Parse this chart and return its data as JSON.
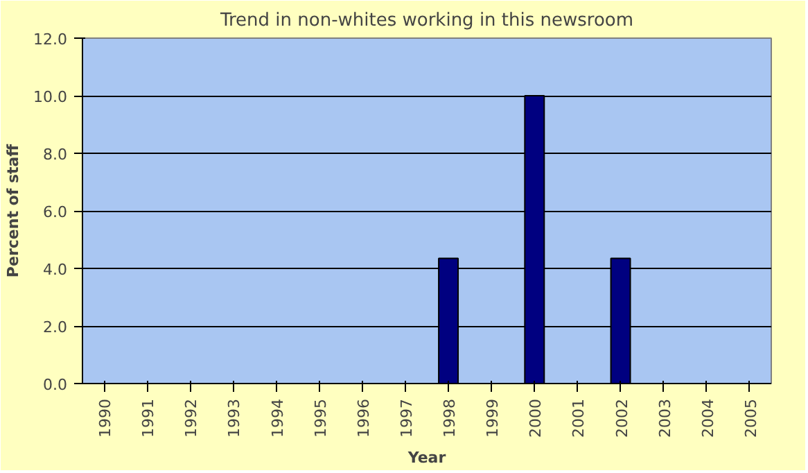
{
  "chart_data": {
    "type": "bar",
    "title": "Trend in non-whites working in this newsroom",
    "xlabel": "Year",
    "ylabel": "Percent of staff",
    "categories": [
      "1990",
      "1991",
      "1992",
      "1993",
      "1994",
      "1995",
      "1996",
      "1997",
      "1998",
      "1999",
      "2000",
      "2001",
      "2002",
      "2003",
      "2004",
      "2005"
    ],
    "values": [
      null,
      null,
      null,
      null,
      null,
      null,
      null,
      null,
      4.35,
      null,
      10.0,
      null,
      4.35,
      null,
      null,
      null
    ],
    "color": "#000080",
    "ylim": [
      0,
      12
    ],
    "yticks": [
      {
        "value": 0,
        "label": "0.0"
      },
      {
        "value": 2,
        "label": "2.0"
      },
      {
        "value": 4,
        "label": "4.0"
      },
      {
        "value": 6,
        "label": "6.0"
      },
      {
        "value": 8,
        "label": "8.0"
      },
      {
        "value": 10,
        "label": "10.0"
      },
      {
        "value": 12,
        "label": "12.0"
      }
    ],
    "grid": "y"
  }
}
